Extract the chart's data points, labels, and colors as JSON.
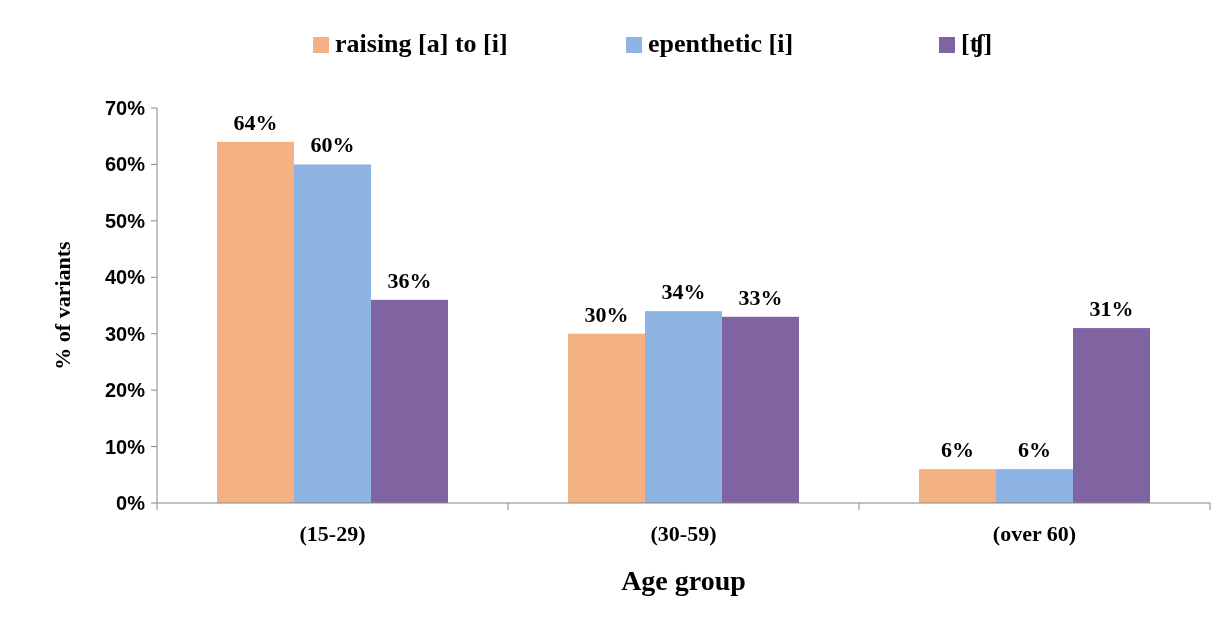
{
  "chart_data": {
    "type": "bar",
    "xlabel": "Age group",
    "ylabel": "% of variants",
    "categories": [
      "(15-29)",
      "(30-59)",
      "(over 60)"
    ],
    "series": [
      {
        "name": "raising [a] to [i]",
        "color": "#f4b183",
        "values": [
          64,
          30,
          6
        ],
        "value_labels": [
          "64%",
          "30%",
          "6%"
        ]
      },
      {
        "name": "epenthetic [i]",
        "color": "#8eb4e3",
        "values": [
          60,
          34,
          6
        ],
        "value_labels": [
          "60%",
          "34%",
          "6%"
        ]
      },
      {
        "name": "[ʧ]",
        "color": "#8064a2",
        "values": [
          36,
          33,
          31
        ],
        "value_labels": [
          "36%",
          "33%",
          "31%"
        ]
      }
    ],
    "ylim": [
      0,
      70
    ],
    "yticks": [
      {
        "value": 0,
        "label": "0%"
      },
      {
        "value": 10,
        "label": "10%"
      },
      {
        "value": 20,
        "label": "20%"
      },
      {
        "value": 30,
        "label": "30%"
      },
      {
        "value": 40,
        "label": "40%"
      },
      {
        "value": 50,
        "label": "50%"
      },
      {
        "value": 60,
        "label": "60%"
      },
      {
        "value": 70,
        "label": "70%"
      }
    ],
    "legend": "top",
    "grid": false
  }
}
